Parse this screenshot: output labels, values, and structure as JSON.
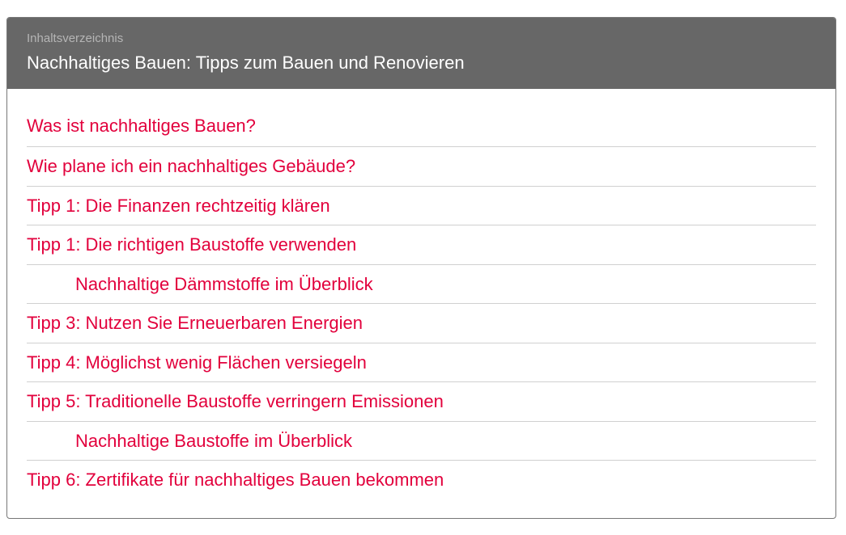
{
  "toc": {
    "label": "Inhaltsverzeichnis",
    "title": "Nachhaltiges Bauen: Tipps zum Bauen und Renovieren",
    "items": [
      {
        "text": "Was ist nachhaltiges Bauen?",
        "level": 1
      },
      {
        "text": "Wie plane ich ein nachhaltiges Gebäude?",
        "level": 1
      },
      {
        "text": "Tipp 1: Die Finanzen rechtzeitig klären",
        "level": 1
      },
      {
        "text": "Tipp 1: Die richtigen Baustoffe verwenden",
        "level": 1
      },
      {
        "text": "Nachhaltige Dämmstoffe im Überblick",
        "level": 2
      },
      {
        "text": "Tipp 3: Nutzen Sie Erneuerbaren Energien",
        "level": 1
      },
      {
        "text": "Tipp 4: Möglichst wenig Flächen versiegeln",
        "level": 1
      },
      {
        "text": "Tipp 5: Traditionelle Baustoffe verringern Emissionen",
        "level": 1
      },
      {
        "text": "Nachhaltige Baustoffe im Überblick",
        "level": 2
      },
      {
        "text": "Tipp 6: Zertifikate für nachhaltiges Bauen bekommen",
        "level": 1
      }
    ]
  },
  "colors": {
    "link": "#e2003c",
    "header_bg": "#676767"
  }
}
